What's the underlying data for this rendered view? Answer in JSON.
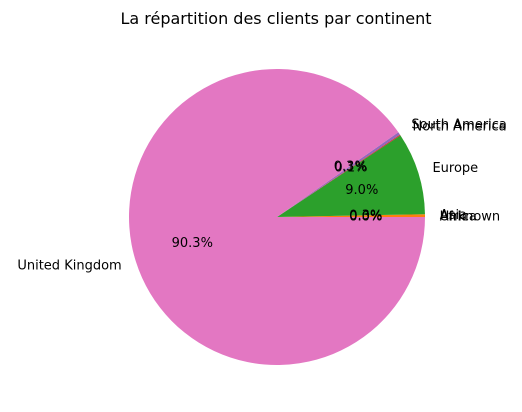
{
  "chart_data": {
    "type": "pie",
    "title": "La répartition des clients par continent",
    "slices": [
      {
        "label": "Africa",
        "value": 0.0,
        "pct": "0.0%",
        "color": "#1f77b4"
      },
      {
        "label": "Asia",
        "value": 0.3,
        "pct": "0.3%",
        "color": "#ff7f0e"
      },
      {
        "label": "Europe",
        "value": 9.0,
        "pct": "9.0%",
        "color": "#2ca02c"
      },
      {
        "label": "North America",
        "value": 0.1,
        "pct": "0.1%",
        "color": "#d62728"
      },
      {
        "label": "South America",
        "value": 0.3,
        "pct": "0.3%",
        "color": "#9467bd"
      },
      {
        "label": "United Kingdom",
        "value": 90.3,
        "pct": "90.3%",
        "color": "#e377c2"
      },
      {
        "label": "Unknown",
        "value": 0.0,
        "pct": "0.0%",
        "color": "#8c564b"
      }
    ]
  }
}
